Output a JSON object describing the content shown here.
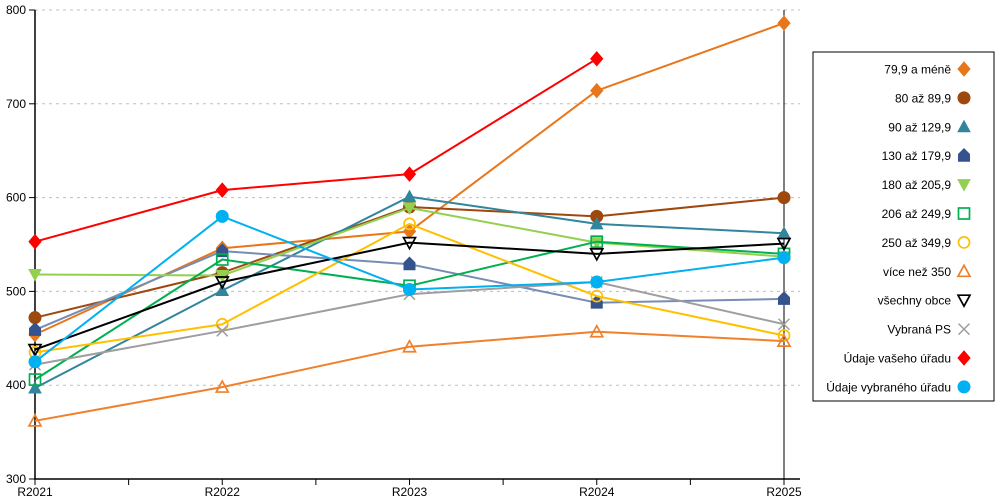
{
  "chart_data": {
    "type": "line",
    "title": "",
    "xlabel": "",
    "ylabel": "",
    "x_categories": [
      "R2021",
      "R2022",
      "R2023",
      "R2024",
      "R2025"
    ],
    "ylim": [
      300,
      800
    ],
    "yticks": [
      300,
      400,
      500,
      600,
      700,
      800
    ],
    "grid": "horizontal-dashed",
    "gridline_color": "#BFBFBF",
    "axis_color": "#000000",
    "legend_position": "right-box",
    "series": [
      {
        "name": "79,9 a méně",
        "color": "#E8761B",
        "marker": "diamond",
        "fill": "filled",
        "values": [
          454,
          546,
          564,
          714,
          786
        ]
      },
      {
        "name": "80 až 89,9",
        "color": "#9E480E",
        "marker": "circle",
        "fill": "filled",
        "values": [
          472,
          520,
          590,
          580,
          600
        ]
      },
      {
        "name": "90 až 129,9",
        "color": "#31859C",
        "marker": "triangle-up",
        "fill": "filled",
        "values": [
          397,
          501,
          601,
          572,
          562
        ]
      },
      {
        "name": "130 až 179,9",
        "color": "#35538D",
        "line_color": "#768CB4",
        "marker": "pentagon",
        "fill": "filled",
        "values": [
          459,
          543,
          529,
          488,
          492
        ]
      },
      {
        "name": "180 až 205,9",
        "color": "#92D050",
        "marker": "triangle-down",
        "fill": "filled",
        "values": [
          518,
          517,
          589,
          552,
          537
        ]
      },
      {
        "name": "206 až 249,9",
        "color": "#00B050",
        "marker": "square",
        "fill": "open",
        "values": [
          406,
          534,
          506,
          553,
          540
        ]
      },
      {
        "name": "250 až 349,9",
        "color": "#FFC000",
        "marker": "circle",
        "fill": "open",
        "values": [
          435,
          465,
          572,
          495,
          453
        ]
      },
      {
        "name": "více než 350",
        "color": "#F0802C",
        "marker": "triangle-up",
        "fill": "open",
        "values": [
          362,
          398,
          441,
          457,
          447
        ]
      },
      {
        "name": "všechny obce",
        "color": "#000000",
        "marker": "triangle-down",
        "fill": "open",
        "values": [
          438,
          510,
          552,
          540,
          551
        ]
      },
      {
        "name": "Vybraná PS",
        "color": "#9E9E9E",
        "marker": "x",
        "fill": "open",
        "values": [
          422,
          458,
          497,
          510,
          465
        ]
      },
      {
        "name": "Údaje vašeho úřadu",
        "color": "#FF0000",
        "marker": "diamond",
        "fill": "filled",
        "values": [
          553,
          608,
          625,
          748,
          null
        ]
      },
      {
        "name": "Údaje vybraného úřadu",
        "color": "#00B0F0",
        "marker": "circle",
        "fill": "filled",
        "values": [
          425,
          580,
          502,
          510,
          536
        ]
      }
    ]
  }
}
